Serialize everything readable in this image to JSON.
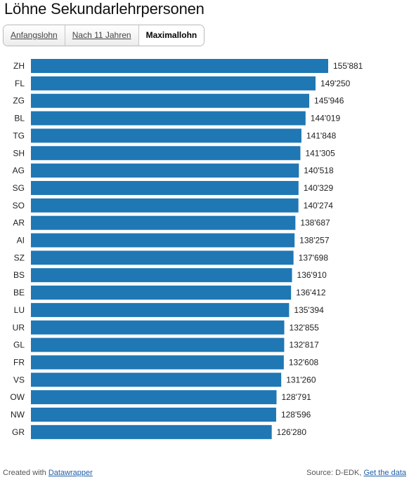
{
  "title": "Löhne Sekundarlehrpersonen",
  "tabs": [
    {
      "label": "Anfangslohn",
      "active": false
    },
    {
      "label": "Nach 11 Jahren",
      "active": false
    },
    {
      "label": "Maximallohn",
      "active": true
    }
  ],
  "chart_data": {
    "type": "bar",
    "orientation": "horizontal",
    "categories": [
      "ZH",
      "FL",
      "ZG",
      "BL",
      "TG",
      "SH",
      "AG",
      "SG",
      "SO",
      "AR",
      "AI",
      "SZ",
      "BS",
      "BE",
      "LU",
      "UR",
      "GL",
      "FR",
      "VS",
      "OW",
      "NW",
      "GR"
    ],
    "values": [
      155881,
      149250,
      145946,
      144019,
      141848,
      141305,
      140518,
      140329,
      140274,
      138687,
      138257,
      137698,
      136910,
      136412,
      135394,
      132855,
      132817,
      132608,
      131260,
      128791,
      128596,
      126280
    ],
    "value_labels": [
      "155'881",
      "149'250",
      "145'946",
      "144'019",
      "141'848",
      "141'305",
      "140'518",
      "140'329",
      "140'274",
      "138'687",
      "138'257",
      "137'698",
      "136'910",
      "136'412",
      "135'394",
      "132'855",
      "132'817",
      "132'608",
      "131'260",
      "128'791",
      "128'596",
      "126'280"
    ],
    "bar_color": "#1f77b4",
    "grid": false,
    "legend": "none"
  },
  "footer": {
    "created_prefix": "Created with",
    "created_link": "Datawrapper",
    "source_prefix": "Source: D-EDK,",
    "source_link": "Get the data"
  }
}
